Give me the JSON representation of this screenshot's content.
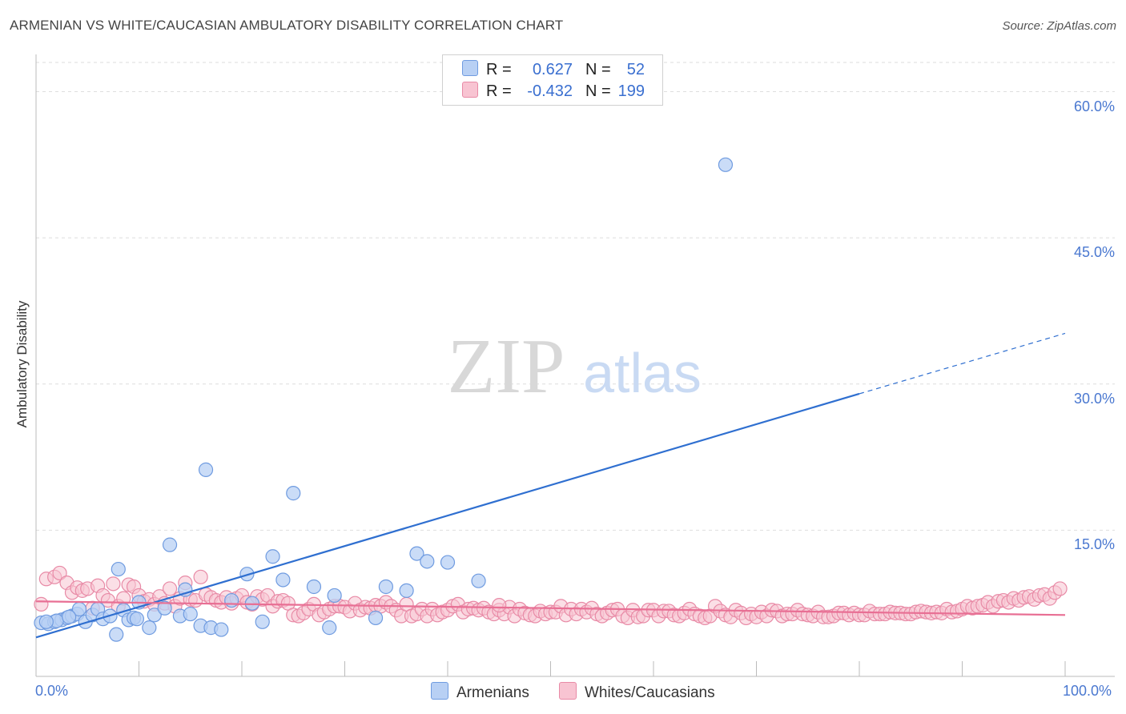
{
  "title": "ARMENIAN VS WHITE/CAUCASIAN AMBULATORY DISABILITY CORRELATION CHART",
  "source": "Source: ZipAtlas.com",
  "watermark": {
    "zip": "ZIP",
    "atlas": "atlas"
  },
  "legend": {
    "rows": [
      {
        "r_label": "R =",
        "r_value": "0.627",
        "n_label": "N =",
        "n_value": "52",
        "color": "#b8d0f4",
        "edge": "#6f9be0"
      },
      {
        "r_label": "R =",
        "r_value": "-0.432",
        "n_label": "N =",
        "n_value": "199",
        "color": "#f8c4d2",
        "edge": "#e88aa6"
      }
    ]
  },
  "bottom_legend": [
    {
      "label": "Armenians",
      "color": "#b8d0f4",
      "edge": "#6f9be0"
    },
    {
      "label": "Whites/Caucasians",
      "color": "#f8c4d2",
      "edge": "#e88aa6"
    }
  ],
  "chart_data": {
    "type": "scatter",
    "title": "ARMENIAN VS WHITE/CAUCASIAN AMBULATORY DISABILITY CORRELATION CHART",
    "xlabel": "",
    "ylabel": "Ambulatory Disability",
    "xlim": [
      0,
      100
    ],
    "ylim": [
      0,
      63
    ],
    "x_tick_labels": [
      "0.0%",
      "100.0%"
    ],
    "y_ticks": [
      15,
      30,
      45,
      60
    ],
    "y_tick_labels": [
      "15.0%",
      "30.0%",
      "45.0%",
      "60.0%"
    ],
    "grid": true,
    "series": [
      {
        "name": "Armenians",
        "color": "#b8d0f4",
        "edge": "#6f9be0",
        "line_color": "#2f6fd0",
        "trend": {
          "x0": 0,
          "y0": 4.0,
          "x1": 80,
          "y1": 29.0,
          "dash_to_x": 100,
          "dash_to_y": 35.2
        },
        "points": [
          [
            0.5,
            5.5
          ],
          [
            1.2,
            5.4
          ],
          [
            1.8,
            5.6
          ],
          [
            2.5,
            5.8
          ],
          [
            3.0,
            6.0
          ],
          [
            3.5,
            6.2
          ],
          [
            4.0,
            6.4
          ],
          [
            4.8,
            5.6
          ],
          [
            5.5,
            6.3
          ],
          [
            6.0,
            6.9
          ],
          [
            6.5,
            5.9
          ],
          [
            7.2,
            6.2
          ],
          [
            7.8,
            4.3
          ],
          [
            8.5,
            6.8
          ],
          [
            9.0,
            5.8
          ],
          [
            9.5,
            6.0
          ],
          [
            10.0,
            7.6
          ],
          [
            11.0,
            5.0
          ],
          [
            11.5,
            6.3
          ],
          [
            12.5,
            7.0
          ],
          [
            13.0,
            13.5
          ],
          [
            14.0,
            6.2
          ],
          [
            14.5,
            8.9
          ],
          [
            16.0,
            5.2
          ],
          [
            16.5,
            21.2
          ],
          [
            17.0,
            5.0
          ],
          [
            18.0,
            4.8
          ],
          [
            19.0,
            7.8
          ],
          [
            20.5,
            10.5
          ],
          [
            21.0,
            7.5
          ],
          [
            22.0,
            5.6
          ],
          [
            23.0,
            12.3
          ],
          [
            24.0,
            9.9
          ],
          [
            25.0,
            18.8
          ],
          [
            27.0,
            9.2
          ],
          [
            28.5,
            5.0
          ],
          [
            29.0,
            8.3
          ],
          [
            33.0,
            6.0
          ],
          [
            34.0,
            9.2
          ],
          [
            36.0,
            8.8
          ],
          [
            37.0,
            12.6
          ],
          [
            38.0,
            11.8
          ],
          [
            40.0,
            11.7
          ],
          [
            43.0,
            9.8
          ],
          [
            4.2,
            6.9
          ],
          [
            2.0,
            5.7
          ],
          [
            1.0,
            5.6
          ],
          [
            3.2,
            6.1
          ],
          [
            8.0,
            11.0
          ],
          [
            9.8,
            5.9
          ],
          [
            15.0,
            6.4
          ],
          [
            67.0,
            52.5
          ]
        ]
      },
      {
        "name": "Whites/Caucasians",
        "color": "#f8c4d2",
        "edge": "#e88aa6",
        "line_color": "#e86f94",
        "trend": {
          "x0": 0,
          "y0": 7.7,
          "x1": 100,
          "y1": 6.3
        },
        "points": [
          [
            0.5,
            7.4
          ],
          [
            1.0,
            10.0
          ],
          [
            1.8,
            10.2
          ],
          [
            2.3,
            10.6
          ],
          [
            3.0,
            9.6
          ],
          [
            3.5,
            8.6
          ],
          [
            4.0,
            9.1
          ],
          [
            4.5,
            8.8
          ],
          [
            5.0,
            9.0
          ],
          [
            5.5,
            7.0
          ],
          [
            6.0,
            9.3
          ],
          [
            6.5,
            8.3
          ],
          [
            7.0,
            7.8
          ],
          [
            7.5,
            9.5
          ],
          [
            8.0,
            7.2
          ],
          [
            8.5,
            8.0
          ],
          [
            9.0,
            9.4
          ],
          [
            9.5,
            9.2
          ],
          [
            10.0,
            8.3
          ],
          [
            10.5,
            7.7
          ],
          [
            11.0,
            7.9
          ],
          [
            11.5,
            7.4
          ],
          [
            12.0,
            8.2
          ],
          [
            12.5,
            7.5
          ],
          [
            13.0,
            9.0
          ],
          [
            13.5,
            7.2
          ],
          [
            14.0,
            8.0
          ],
          [
            14.5,
            9.6
          ],
          [
            15.0,
            7.9
          ],
          [
            15.5,
            7.8
          ],
          [
            16.0,
            10.2
          ],
          [
            16.5,
            8.4
          ],
          [
            17.0,
            8.1
          ],
          [
            17.5,
            7.8
          ],
          [
            18.0,
            7.6
          ],
          [
            18.5,
            8.1
          ],
          [
            19.0,
            7.5
          ],
          [
            19.5,
            8.0
          ],
          [
            20.0,
            8.3
          ],
          [
            20.5,
            7.6
          ],
          [
            21.0,
            7.4
          ],
          [
            21.5,
            8.2
          ],
          [
            22.0,
            7.9
          ],
          [
            22.5,
            8.3
          ],
          [
            23.0,
            7.2
          ],
          [
            23.5,
            7.7
          ],
          [
            24.0,
            7.8
          ],
          [
            24.5,
            7.5
          ],
          [
            25.0,
            6.3
          ],
          [
            25.5,
            6.2
          ],
          [
            26.0,
            6.5
          ],
          [
            26.5,
            6.9
          ],
          [
            27.0,
            7.4
          ],
          [
            27.5,
            6.3
          ],
          [
            28.0,
            6.6
          ],
          [
            28.5,
            6.9
          ],
          [
            29.0,
            7.2
          ],
          [
            29.5,
            7.2
          ],
          [
            30.0,
            7.1
          ],
          [
            30.5,
            6.7
          ],
          [
            31.0,
            7.5
          ],
          [
            31.5,
            6.8
          ],
          [
            32.0,
            7.1
          ],
          [
            32.5,
            7.0
          ],
          [
            33.0,
            7.3
          ],
          [
            33.5,
            7.2
          ],
          [
            34.0,
            7.6
          ],
          [
            34.5,
            7.2
          ],
          [
            35.0,
            6.8
          ],
          [
            35.5,
            6.2
          ],
          [
            36.0,
            7.4
          ],
          [
            36.5,
            6.2
          ],
          [
            37.0,
            6.4
          ],
          [
            37.5,
            6.9
          ],
          [
            38.0,
            6.2
          ],
          [
            38.5,
            6.9
          ],
          [
            39.0,
            6.3
          ],
          [
            39.5,
            6.6
          ],
          [
            40.0,
            6.8
          ],
          [
            40.5,
            7.2
          ],
          [
            41.0,
            7.4
          ],
          [
            41.5,
            6.6
          ],
          [
            42.0,
            6.9
          ],
          [
            42.5,
            7.0
          ],
          [
            43.0,
            6.8
          ],
          [
            43.5,
            7.0
          ],
          [
            44.0,
            6.6
          ],
          [
            44.5,
            6.4
          ],
          [
            45.0,
            6.8
          ],
          [
            45.5,
            6.4
          ],
          [
            46.0,
            7.1
          ],
          [
            46.5,
            6.2
          ],
          [
            47.0,
            6.9
          ],
          [
            47.5,
            6.5
          ],
          [
            48.0,
            6.3
          ],
          [
            48.5,
            6.2
          ],
          [
            49.0,
            6.7
          ],
          [
            49.5,
            6.4
          ],
          [
            50.0,
            6.6
          ],
          [
            50.5,
            6.6
          ],
          [
            51.0,
            7.2
          ],
          [
            51.5,
            6.3
          ],
          [
            52.0,
            6.9
          ],
          [
            52.5,
            6.4
          ],
          [
            53.0,
            6.9
          ],
          [
            53.5,
            6.6
          ],
          [
            54.0,
            7.0
          ],
          [
            54.5,
            6.4
          ],
          [
            55.0,
            6.2
          ],
          [
            55.5,
            6.5
          ],
          [
            56.0,
            6.8
          ],
          [
            56.5,
            6.9
          ],
          [
            57.0,
            6.2
          ],
          [
            57.5,
            6.0
          ],
          [
            58.0,
            6.8
          ],
          [
            58.5,
            6.1
          ],
          [
            59.0,
            6.2
          ],
          [
            59.5,
            6.8
          ],
          [
            60.0,
            6.8
          ],
          [
            60.5,
            6.2
          ],
          [
            61.0,
            6.7
          ],
          [
            61.5,
            6.7
          ],
          [
            62.0,
            6.3
          ],
          [
            62.5,
            6.2
          ],
          [
            63.0,
            6.5
          ],
          [
            63.5,
            6.9
          ],
          [
            64.0,
            6.4
          ],
          [
            64.5,
            6.2
          ],
          [
            65.0,
            6.0
          ],
          [
            65.5,
            6.2
          ],
          [
            66.0,
            7.2
          ],
          [
            66.5,
            6.7
          ],
          [
            67.0,
            6.3
          ],
          [
            67.5,
            6.1
          ],
          [
            68.0,
            6.8
          ],
          [
            68.5,
            6.5
          ],
          [
            69.0,
            6.0
          ],
          [
            69.5,
            6.4
          ],
          [
            70.0,
            6.1
          ],
          [
            70.5,
            6.6
          ],
          [
            71.0,
            6.2
          ],
          [
            71.5,
            6.8
          ],
          [
            72.0,
            6.7
          ],
          [
            72.5,
            6.2
          ],
          [
            73.0,
            6.4
          ],
          [
            73.5,
            6.4
          ],
          [
            74.0,
            6.8
          ],
          [
            74.5,
            6.4
          ],
          [
            75.0,
            6.3
          ],
          [
            75.5,
            6.2
          ],
          [
            76.0,
            6.6
          ],
          [
            76.5,
            6.1
          ],
          [
            77.0,
            6.1
          ],
          [
            77.5,
            6.2
          ],
          [
            78.0,
            6.5
          ],
          [
            78.5,
            6.5
          ],
          [
            79.0,
            6.3
          ],
          [
            79.5,
            6.5
          ],
          [
            80.0,
            6.3
          ],
          [
            80.5,
            6.3
          ],
          [
            81.0,
            6.7
          ],
          [
            81.5,
            6.4
          ],
          [
            82.0,
            6.4
          ],
          [
            82.5,
            6.4
          ],
          [
            83.0,
            6.6
          ],
          [
            83.5,
            6.5
          ],
          [
            84.0,
            6.5
          ],
          [
            84.5,
            6.4
          ],
          [
            85.0,
            6.4
          ],
          [
            85.5,
            6.6
          ],
          [
            86.0,
            6.7
          ],
          [
            86.5,
            6.6
          ],
          [
            87.0,
            6.5
          ],
          [
            87.5,
            6.6
          ],
          [
            88.0,
            6.5
          ],
          [
            88.5,
            6.9
          ],
          [
            89.0,
            6.6
          ],
          [
            89.5,
            6.7
          ],
          [
            90.0,
            6.9
          ],
          [
            90.5,
            7.2
          ],
          [
            91.0,
            7.0
          ],
          [
            91.5,
            7.2
          ],
          [
            92.0,
            7.3
          ],
          [
            92.5,
            7.6
          ],
          [
            93.0,
            7.2
          ],
          [
            93.5,
            7.7
          ],
          [
            94.0,
            7.8
          ],
          [
            94.5,
            7.6
          ],
          [
            95.0,
            8.0
          ],
          [
            95.5,
            7.8
          ],
          [
            96.0,
            8.1
          ],
          [
            96.5,
            8.2
          ],
          [
            97.0,
            7.9
          ],
          [
            97.5,
            8.3
          ],
          [
            98.0,
            8.4
          ],
          [
            98.5,
            8.0
          ],
          [
            99.0,
            8.6
          ],
          [
            99.5,
            9.0
          ],
          [
            45.0,
            7.3
          ]
        ]
      }
    ]
  }
}
